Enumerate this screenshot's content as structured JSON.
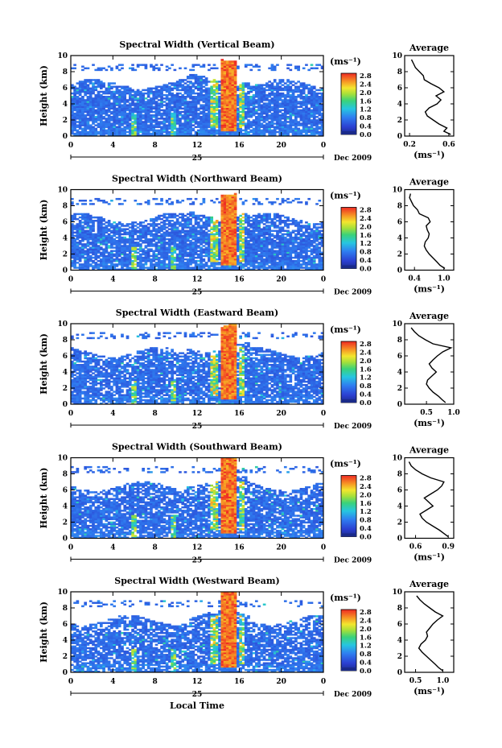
{
  "figure": {
    "x_axis_title": "Local Time",
    "date_label": "Dec 2009",
    "day_label": "25",
    "colorbar_unit": "(ms⁻¹)",
    "colorbar_ticks": [
      "2.8",
      "2.4",
      "2.0",
      "1.6",
      "1.2",
      "0.8",
      "0.4",
      "0.0"
    ],
    "avg_title": "Average",
    "avg_unit": "(ms⁻¹)",
    "y_axis_title": "Height (km)"
  },
  "chart_data": [
    {
      "type": "heatmap",
      "title": "Spectral Width (Vertical Beam)",
      "xlabel": "",
      "ylabel": "Height (km)",
      "x_ticks": [
        "0",
        "4",
        "8",
        "12",
        "16",
        "20",
        "0"
      ],
      "xlim": [
        0,
        24
      ],
      "y_ticks": [
        "0",
        "2",
        "4",
        "6",
        "8",
        "10"
      ],
      "ylim": [
        0,
        10
      ],
      "colorbar": {
        "unit": "(ms⁻¹)",
        "range": [
          0.0,
          3.0
        ]
      },
      "profile": {
        "title": "Average",
        "unit": "(ms⁻¹)",
        "xlim": [
          0.15,
          0.65
        ],
        "x_ticks": [
          0.2,
          0.6
        ],
        "x_tick_labels": [
          "0.2",
          "0.6"
        ],
        "height": [
          0.2,
          0.6,
          1.0,
          1.5,
          2.0,
          2.5,
          3.0,
          3.5,
          4.0,
          4.5,
          5.0,
          5.5,
          6.0,
          6.5,
          7.0,
          7.5,
          8.0,
          8.5,
          9.0,
          9.5
        ],
        "value": [
          0.62,
          0.55,
          0.58,
          0.5,
          0.44,
          0.38,
          0.36,
          0.4,
          0.48,
          0.52,
          0.47,
          0.55,
          0.5,
          0.42,
          0.35,
          0.34,
          0.3,
          0.26,
          0.24,
          0.22
        ]
      }
    },
    {
      "type": "heatmap",
      "title": "Spectral Width (Northward Beam)",
      "xlabel": "",
      "ylabel": "Height (km)",
      "x_ticks": [
        "0",
        "4",
        "8",
        "12",
        "16",
        "20",
        "0"
      ],
      "xlim": [
        0,
        24
      ],
      "y_ticks": [
        "0",
        "2",
        "4",
        "6",
        "8",
        "10"
      ],
      "ylim": [
        0,
        10
      ],
      "colorbar": {
        "unit": "(ms⁻¹)",
        "range": [
          0.0,
          3.0
        ]
      },
      "profile": {
        "title": "Average",
        "unit": "(ms⁻¹)",
        "xlim": [
          0.2,
          1.2
        ],
        "x_ticks": [
          0.4,
          1.0
        ],
        "x_tick_labels": [
          "0.4",
          "1.0"
        ],
        "height": [
          0.2,
          0.6,
          1.0,
          1.5,
          2.0,
          2.5,
          3.0,
          3.5,
          4.0,
          4.5,
          5.0,
          5.5,
          6.0,
          6.5,
          7.0,
          7.5,
          8.0,
          8.5,
          9.0,
          9.5
        ],
        "value": [
          1.02,
          0.92,
          0.86,
          0.78,
          0.7,
          0.64,
          0.6,
          0.62,
          0.68,
          0.7,
          0.66,
          0.64,
          0.72,
          0.68,
          0.5,
          0.46,
          0.38,
          0.34,
          0.3,
          0.32
        ]
      }
    },
    {
      "type": "heatmap",
      "title": "Spectral Width (Eastward Beam)",
      "xlabel": "",
      "ylabel": "Height (km)",
      "x_ticks": [
        "0",
        "4",
        "8",
        "12",
        "16",
        "20",
        "0"
      ],
      "xlim": [
        0,
        24
      ],
      "y_ticks": [
        "0",
        "2",
        "4",
        "6",
        "8",
        "10"
      ],
      "ylim": [
        0,
        10
      ],
      "colorbar": {
        "unit": "(ms⁻¹)",
        "range": [
          0.0,
          3.0
        ]
      },
      "profile": {
        "title": "Average",
        "unit": "(ms⁻¹)",
        "xlim": [
          0.1,
          1.0
        ],
        "x_ticks": [
          0.5,
          1.0
        ],
        "x_tick_labels": [
          "0.5",
          "1.0"
        ],
        "height": [
          0.2,
          0.6,
          1.0,
          1.5,
          2.0,
          2.5,
          3.0,
          3.5,
          4.0,
          4.5,
          5.0,
          5.5,
          6.0,
          6.5,
          7.0,
          7.5,
          8.0,
          8.5,
          9.0,
          9.5
        ],
        "value": [
          0.85,
          0.78,
          0.72,
          0.62,
          0.55,
          0.5,
          0.52,
          0.6,
          0.68,
          0.6,
          0.55,
          0.62,
          0.7,
          0.8,
          0.95,
          0.62,
          0.48,
          0.36,
          0.28,
          0.22
        ]
      }
    },
    {
      "type": "heatmap",
      "title": "Spectral Width (Southward Beam)",
      "xlabel": "",
      "ylabel": "Height (km)",
      "x_ticks": [
        "0",
        "4",
        "8",
        "12",
        "16",
        "20",
        "0"
      ],
      "xlim": [
        0,
        24
      ],
      "y_ticks": [
        "0",
        "2",
        "4",
        "6",
        "8",
        "10"
      ],
      "ylim": [
        0,
        10
      ],
      "colorbar": {
        "unit": "(ms⁻¹)",
        "range": [
          0.0,
          3.0
        ]
      },
      "profile": {
        "title": "Average",
        "unit": "(ms⁻¹)",
        "xlim": [
          0.5,
          0.95
        ],
        "x_ticks": [
          0.6,
          0.9
        ],
        "x_tick_labels": [
          "0.6",
          "0.9"
        ],
        "height": [
          0.2,
          0.6,
          1.0,
          1.5,
          2.0,
          2.5,
          3.0,
          3.5,
          4.0,
          4.5,
          5.0,
          5.5,
          6.0,
          6.5,
          7.0,
          7.5,
          8.0,
          8.5,
          9.0,
          9.5
        ],
        "value": [
          0.9,
          0.86,
          0.82,
          0.76,
          0.7,
          0.66,
          0.64,
          0.7,
          0.76,
          0.72,
          0.68,
          0.74,
          0.8,
          0.84,
          0.86,
          0.74,
          0.66,
          0.6,
          0.56,
          0.54
        ]
      }
    },
    {
      "type": "heatmap",
      "title": "Spectral Width (Westward Beam)",
      "xlabel": "Local Time",
      "ylabel": "Height (km)",
      "x_ticks": [
        "0",
        "4",
        "8",
        "12",
        "16",
        "20",
        "0"
      ],
      "xlim": [
        0,
        24
      ],
      "y_ticks": [
        "0",
        "2",
        "4",
        "6",
        "8",
        "10"
      ],
      "ylim": [
        0,
        10
      ],
      "colorbar": {
        "unit": "(ms⁻¹)",
        "range": [
          0.0,
          3.0
        ]
      },
      "profile": {
        "title": "Average",
        "unit": "(ms⁻¹)",
        "xlim": [
          0.3,
          1.2
        ],
        "x_ticks": [
          0.5,
          1.0
        ],
        "x_tick_labels": [
          "0.5",
          "1.0"
        ],
        "height": [
          0.2,
          0.6,
          1.0,
          1.5,
          2.0,
          2.5,
          3.0,
          3.5,
          4.0,
          4.5,
          5.0,
          5.5,
          6.0,
          6.5,
          7.0,
          7.5,
          8.0,
          8.5,
          9.0,
          9.5
        ],
        "value": [
          1.0,
          0.92,
          0.86,
          0.78,
          0.7,
          0.62,
          0.56,
          0.6,
          0.68,
          0.72,
          0.7,
          0.76,
          0.82,
          0.9,
          1.0,
          0.86,
          0.76,
          0.66,
          0.58,
          0.52
        ]
      }
    }
  ]
}
